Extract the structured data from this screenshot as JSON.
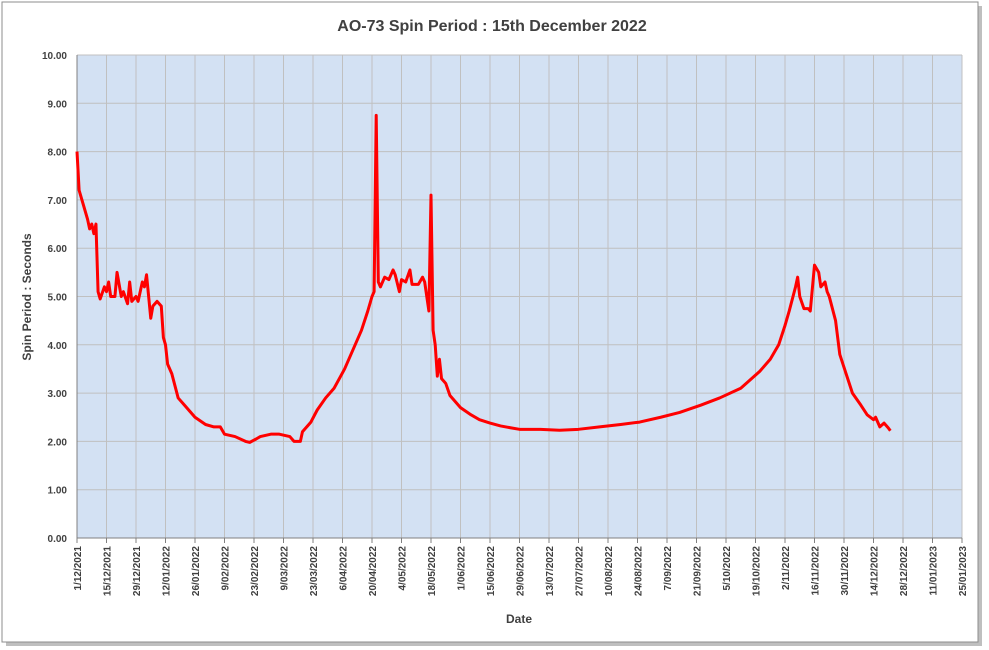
{
  "chart_data": {
    "type": "line",
    "title": "AO-73 Spin Period : 15th December 2022",
    "x_label": "Date",
    "y_label": "Spin Period : Seconds",
    "color": "#ff0000",
    "grid": true,
    "xlim": [
      "2021-12-01",
      "2023-01-25"
    ],
    "ylim": [
      0,
      10
    ],
    "yticks": [
      {
        "value": 0,
        "label": "0.00"
      },
      {
        "value": 1,
        "label": "1.00"
      },
      {
        "value": 2,
        "label": "2.00"
      },
      {
        "value": 3,
        "label": "3.00"
      },
      {
        "value": 4,
        "label": "4.00"
      },
      {
        "value": 5,
        "label": "5.00"
      },
      {
        "value": 6,
        "label": "6.00"
      },
      {
        "value": 7,
        "label": "7.00"
      },
      {
        "value": 8,
        "label": "8.00"
      },
      {
        "value": 9,
        "label": "9.00"
      },
      {
        "value": 10,
        "label": "10.00"
      }
    ],
    "xticks": [
      {
        "value": "2021-12-01",
        "label": "1/12/2021"
      },
      {
        "value": "2021-12-15",
        "label": "15/12/2021"
      },
      {
        "value": "2021-12-29",
        "label": "29/12/2021"
      },
      {
        "value": "2022-01-12",
        "label": "12/01/2022"
      },
      {
        "value": "2022-01-26",
        "label": "26/01/2022"
      },
      {
        "value": "2022-02-09",
        "label": "9/02/2022"
      },
      {
        "value": "2022-02-23",
        "label": "23/02/2022"
      },
      {
        "value": "2022-03-09",
        "label": "9/03/2022"
      },
      {
        "value": "2022-03-23",
        "label": "23/03/2022"
      },
      {
        "value": "2022-04-06",
        "label": "6/04/2022"
      },
      {
        "value": "2022-04-20",
        "label": "20/04/2022"
      },
      {
        "value": "2022-05-04",
        "label": "4/05/2022"
      },
      {
        "value": "2022-05-18",
        "label": "18/05/2022"
      },
      {
        "value": "2022-06-01",
        "label": "1/06/2022"
      },
      {
        "value": "2022-06-15",
        "label": "15/06/2022"
      },
      {
        "value": "2022-06-29",
        "label": "29/06/2022"
      },
      {
        "value": "2022-07-13",
        "label": "13/07/2022"
      },
      {
        "value": "2022-07-27",
        "label": "27/07/2022"
      },
      {
        "value": "2022-08-10",
        "label": "10/08/2022"
      },
      {
        "value": "2022-08-24",
        "label": "24/08/2022"
      },
      {
        "value": "2022-09-07",
        "label": "7/09/2022"
      },
      {
        "value": "2022-09-21",
        "label": "21/09/2022"
      },
      {
        "value": "2022-10-05",
        "label": "5/10/2022"
      },
      {
        "value": "2022-10-19",
        "label": "19/10/2022"
      },
      {
        "value": "2022-11-02",
        "label": "2/11/2022"
      },
      {
        "value": "2022-11-16",
        "label": "16/11/2022"
      },
      {
        "value": "2022-11-30",
        "label": "30/11/2022"
      },
      {
        "value": "2022-12-14",
        "label": "14/12/2022"
      },
      {
        "value": "2022-12-28",
        "label": "28/12/2022"
      },
      {
        "value": "2023-01-11",
        "label": "11/01/2023"
      },
      {
        "value": "2023-01-25",
        "label": "25/01/2023"
      }
    ],
    "x": [
      "2021-12-01",
      "2021-12-02",
      "2021-12-04",
      "2021-12-06",
      "2021-12-07",
      "2021-12-08",
      "2021-12-09",
      "2021-12-10",
      "2021-12-11",
      "2021-12-12",
      "2021-12-14",
      "2021-12-15",
      "2021-12-16",
      "2021-12-17",
      "2021-12-19",
      "2021-12-20",
      "2021-12-22",
      "2021-12-23",
      "2021-12-25",
      "2021-12-26",
      "2021-12-27",
      "2021-12-29",
      "2021-12-30",
      "2022-01-01",
      "2022-01-02",
      "2022-01-03",
      "2022-01-05",
      "2022-01-06",
      "2022-01-08",
      "2022-01-10",
      "2022-01-11",
      "2022-01-12",
      "2022-01-13",
      "2022-01-15",
      "2022-01-18",
      "2022-01-21",
      "2022-01-26",
      "2022-01-31",
      "2022-02-04",
      "2022-02-07",
      "2022-02-09",
      "2022-02-14",
      "2022-02-19",
      "2022-02-21",
      "2022-02-24",
      "2022-02-26",
      "2022-03-03",
      "2022-03-07",
      "2022-03-12",
      "2022-03-14",
      "2022-03-17",
      "2022-03-18",
      "2022-03-22",
      "2022-03-25",
      "2022-03-29",
      "2022-04-02",
      "2022-04-07",
      "2022-04-12",
      "2022-04-15",
      "2022-04-18",
      "2022-04-20",
      "2022-04-21",
      "2022-04-22",
      "2022-04-23",
      "2022-04-24",
      "2022-04-26",
      "2022-04-28",
      "2022-04-30",
      "2022-05-01",
      "2022-05-03",
      "2022-05-04",
      "2022-05-06",
      "2022-05-08",
      "2022-05-09",
      "2022-05-12",
      "2022-05-14",
      "2022-05-15",
      "2022-05-17",
      "2022-05-18",
      "2022-05-19",
      "2022-05-20",
      "2022-05-21",
      "2022-05-22",
      "2022-05-23",
      "2022-05-25",
      "2022-05-27",
      "2022-06-01",
      "2022-06-06",
      "2022-06-10",
      "2022-06-15",
      "2022-06-20",
      "2022-06-25",
      "2022-06-29",
      "2022-07-09",
      "2022-07-18",
      "2022-07-27",
      "2022-08-06",
      "2022-08-16",
      "2022-08-25",
      "2022-09-04",
      "2022-09-13",
      "2022-09-23",
      "2022-10-02",
      "2022-10-12",
      "2022-10-21",
      "2022-10-26",
      "2022-10-30",
      "2022-11-02",
      "2022-11-04",
      "2022-11-07",
      "2022-11-08",
      "2022-11-09",
      "2022-11-11",
      "2022-11-13",
      "2022-11-14",
      "2022-11-16",
      "2022-11-18",
      "2022-11-19",
      "2022-11-21",
      "2022-11-22",
      "2022-11-23",
      "2022-11-26",
      "2022-11-28",
      "2022-12-01",
      "2022-12-04",
      "2022-12-08",
      "2022-12-11",
      "2022-12-14",
      "2022-12-15",
      "2022-12-17",
      "2022-12-19",
      "2022-12-21",
      "2022-12-22"
    ],
    "values": [
      8.0,
      7.2,
      6.9,
      6.6,
      6.4,
      6.5,
      6.3,
      6.5,
      5.1,
      4.95,
      5.2,
      5.1,
      5.3,
      5.0,
      5.0,
      5.5,
      5.0,
      5.1,
      4.85,
      5.3,
      4.9,
      5.0,
      4.9,
      5.3,
      5.2,
      5.45,
      4.55,
      4.8,
      4.9,
      4.8,
      4.15,
      4.0,
      3.6,
      3.4,
      2.9,
      2.75,
      2.5,
      2.35,
      2.3,
      2.3,
      2.15,
      2.1,
      2.0,
      1.98,
      2.05,
      2.1,
      2.15,
      2.15,
      2.1,
      2.0,
      2.0,
      2.2,
      2.4,
      2.65,
      2.9,
      3.1,
      3.5,
      4.0,
      4.3,
      4.7,
      5.0,
      5.1,
      8.75,
      5.3,
      5.2,
      5.4,
      5.35,
      5.55,
      5.45,
      5.1,
      5.35,
      5.3,
      5.55,
      5.25,
      5.25,
      5.4,
      5.3,
      4.7,
      7.1,
      4.3,
      4.0,
      3.35,
      3.7,
      3.3,
      3.2,
      2.95,
      2.7,
      2.55,
      2.45,
      2.38,
      2.32,
      2.28,
      2.25,
      2.25,
      2.23,
      2.25,
      2.3,
      2.35,
      2.4,
      2.5,
      2.6,
      2.75,
      2.9,
      3.1,
      3.45,
      3.7,
      4.0,
      4.4,
      4.7,
      5.2,
      5.4,
      5.0,
      4.75,
      4.75,
      4.7,
      5.65,
      5.5,
      5.2,
      5.3,
      5.1,
      5.0,
      4.5,
      3.8,
      3.4,
      3.0,
      2.75,
      2.55,
      2.45,
      2.5,
      2.3,
      2.38,
      2.28,
      2.22
    ]
  }
}
